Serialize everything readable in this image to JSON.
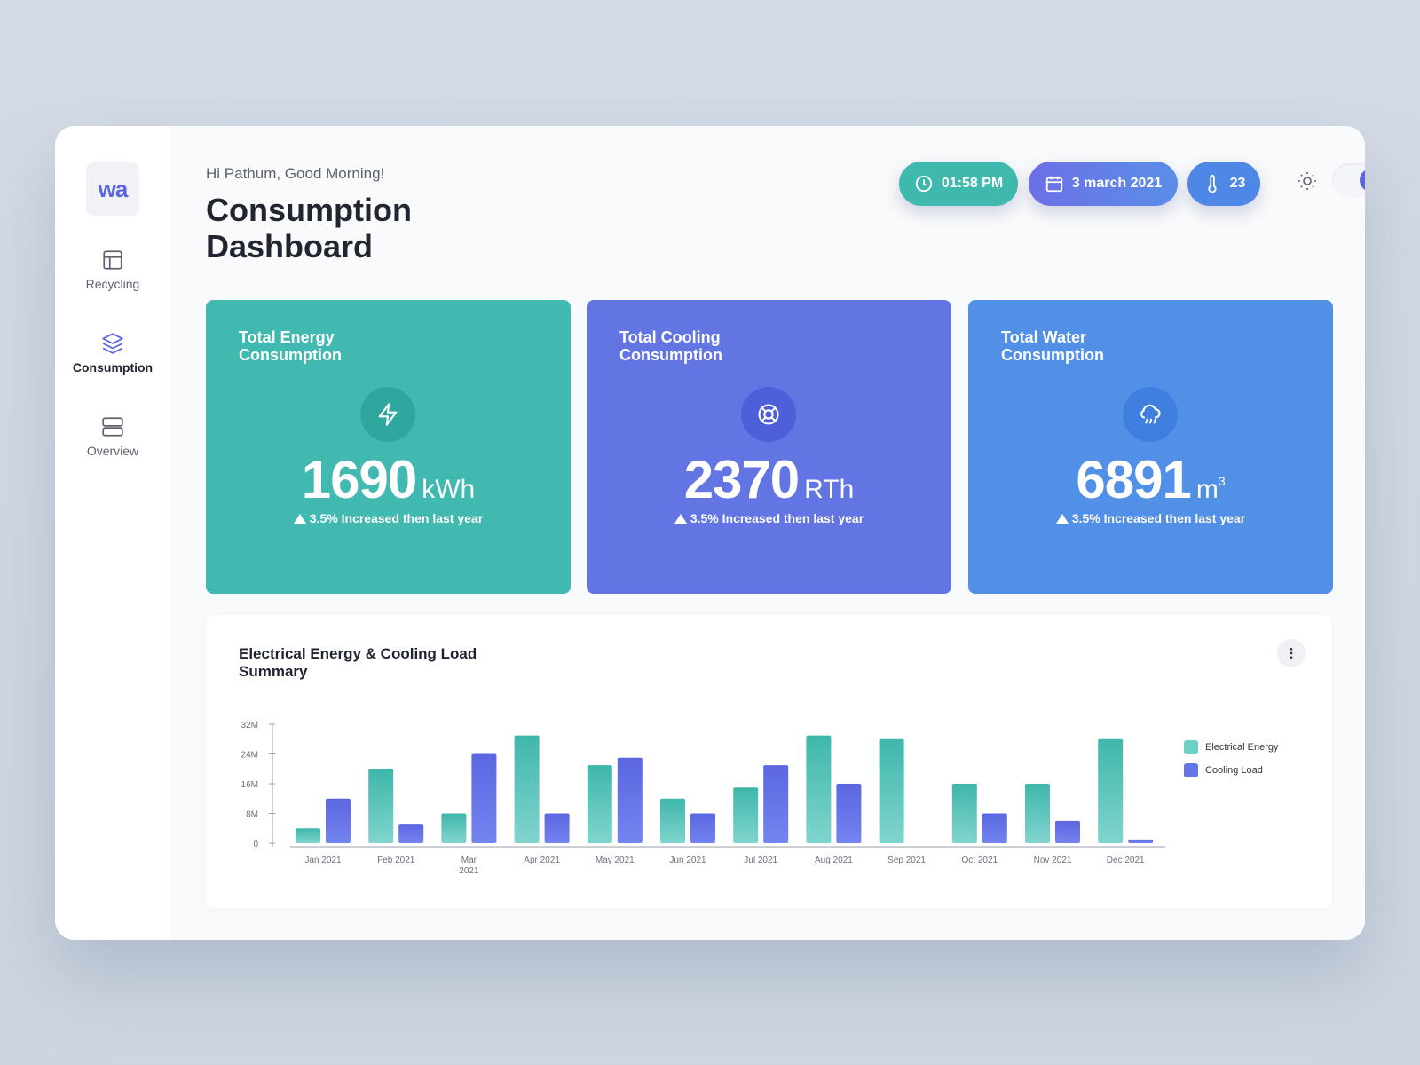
{
  "sidebar": {
    "logo": "wa",
    "items": [
      {
        "label": "Recycling",
        "icon": "layout-icon",
        "active": false
      },
      {
        "label": "Consumption",
        "icon": "layers-icon",
        "active": true
      },
      {
        "label": "Overview",
        "icon": "server-icon",
        "active": false
      }
    ]
  },
  "header": {
    "greeting": "Hi Pathum, Good Morning!",
    "title": "Consumption Dashboard",
    "time": "01:58 PM",
    "date": "3 march 2021",
    "temperature": "23",
    "theme_toggle": "on"
  },
  "cards": [
    {
      "title": "Total Energy Consumption",
      "value": "1690",
      "unit": "kWh",
      "trend": "3.5% Increased then last year",
      "icon": "lightning-icon",
      "color": "#41b8b0"
    },
    {
      "title": "Total Cooling Consumption",
      "value": "2370",
      "unit": "RTh",
      "trend": "3.5% Increased then last year",
      "icon": "lifebuoy-icon",
      "color": "#6275e3"
    },
    {
      "title": "Total Water Consumption",
      "value": "6891",
      "unit": "m",
      "unit_sup": "3",
      "trend": "3.5% Increased then last year",
      "icon": "cloud-rain-icon",
      "color": "#5190e6"
    }
  ],
  "chart_card": {
    "title": "Electrical Energy & Cooling Load Summary"
  },
  "chart_data": {
    "type": "bar",
    "title": "Electrical Energy & Cooling Load Summary",
    "categories": [
      "Jan 2021",
      "Feb 2021",
      "Mar 2021",
      "Apr 2021",
      "May 2021",
      "Jun 2021",
      "Jul 2021",
      "Aug 2021",
      "Sep 2021",
      "Oct 2021",
      "Nov 2021",
      "Dec 2021"
    ],
    "series": [
      {
        "name": "Electrical Energy",
        "color": "#45bfb3",
        "values": [
          4,
          20,
          8,
          29,
          21,
          12,
          15,
          29,
          28,
          16,
          16,
          28
        ]
      },
      {
        "name": "Cooling Load",
        "color": "#6275e3",
        "values": [
          12,
          5,
          24,
          8,
          23,
          8,
          21,
          16,
          0,
          8,
          6,
          1
        ]
      }
    ],
    "yticks": [
      "0",
      "8M",
      "16M",
      "24M",
      "32M"
    ],
    "ylim": [
      0,
      32
    ],
    "legend_position": "right",
    "grid": false
  }
}
